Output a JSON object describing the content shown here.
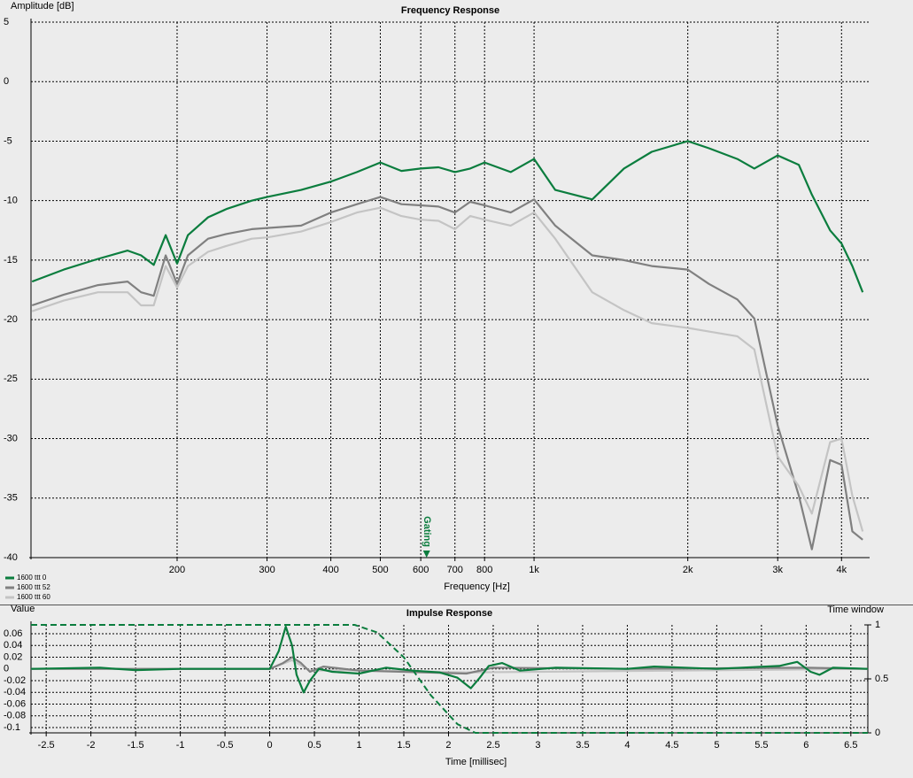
{
  "chart_data": [
    {
      "type": "line",
      "title": "Frequency Response",
      "y_label": "Amplitude [dB]",
      "x_label": "Frequency [Hz]",
      "x_scale": "log",
      "grid": true,
      "legend": "bottom-left",
      "xlim": [
        103.5,
        4540
      ],
      "ylim": [
        -40,
        5
      ],
      "xticks": [
        200,
        300,
        400,
        500,
        600,
        700,
        800,
        {
          "value": 1000,
          "label": "1k"
        },
        {
          "value": 2000,
          "label": "2k"
        },
        {
          "value": 3000,
          "label": "3k"
        },
        {
          "value": 4000,
          "label": "4k"
        }
      ],
      "yticks": [
        5,
        0,
        -5,
        -10,
        -15,
        -20,
        -25,
        -30,
        -35,
        -40
      ],
      "annotation": {
        "text": "Gating",
        "x": 616
      },
      "x": [
        104,
        120,
        140,
        160,
        170,
        180,
        190,
        200,
        210,
        230,
        250,
        280,
        300,
        350,
        400,
        450,
        500,
        550,
        600,
        650,
        700,
        750,
        800,
        900,
        1000,
        1100,
        1300,
        1500,
        1700,
        2000,
        2200,
        2500,
        2700,
        3000,
        3300,
        3500,
        3800,
        4000,
        4200,
        4400
      ],
      "series": [
        {
          "name": "1600 ttt 0",
          "color": "#0b7d3e",
          "values": [
            -16.8,
            -15.8,
            -14.9,
            -14.2,
            -14.6,
            -15.4,
            -12.9,
            -15.3,
            -12.9,
            -11.4,
            -10.7,
            -10.0,
            -9.7,
            -9.1,
            -8.4,
            -7.6,
            -6.8,
            -7.5,
            -7.3,
            -7.2,
            -7.6,
            -7.3,
            -6.8,
            -7.6,
            -6.5,
            -9.1,
            -9.9,
            -7.3,
            -5.9,
            -5.0,
            -5.6,
            -6.5,
            -7.3,
            -6.2,
            -7.0,
            -9.5,
            -12.5,
            -13.6,
            -15.5,
            -17.7
          ]
        },
        {
          "name": "1600 ttt 52",
          "color": "#808080",
          "values": [
            -18.8,
            -17.9,
            -17.1,
            -16.8,
            -17.7,
            -18.0,
            -14.6,
            -17.0,
            -14.6,
            -13.2,
            -12.8,
            -12.4,
            -12.3,
            -12.1,
            -11.0,
            -10.3,
            -9.7,
            -10.3,
            -10.4,
            -10.5,
            -11.0,
            -10.1,
            -10.4,
            -11.0,
            -9.9,
            -12.1,
            -14.6,
            -15.0,
            -15.5,
            -15.8,
            -17.0,
            -18.3,
            -19.9,
            -28.9,
            -34.8,
            -39.3,
            -31.8,
            -32.2,
            -37.8,
            -38.5
          ]
        },
        {
          "name": "1600 ttt 60",
          "color": "#c4c4c4",
          "values": [
            -19.3,
            -18.4,
            -17.7,
            -17.7,
            -18.8,
            -18.8,
            -15.5,
            -17.3,
            -15.5,
            -14.3,
            -13.8,
            -13.2,
            -13.1,
            -12.6,
            -11.8,
            -11.0,
            -10.6,
            -11.3,
            -11.6,
            -11.7,
            -12.4,
            -11.3,
            -11.6,
            -12.1,
            -11.0,
            -13.2,
            -17.7,
            -19.2,
            -20.3,
            -20.7,
            -21.0,
            -21.4,
            -22.5,
            -31.5,
            -34.0,
            -36.3,
            -30.3,
            -30.0,
            -34.8,
            -37.8
          ]
        }
      ]
    },
    {
      "type": "line",
      "title": "Impulse Response",
      "y_label": "Value",
      "y2_label": "Time window",
      "x_label": "Time [millisec]",
      "x_scale": "linear",
      "grid": true,
      "xlim": [
        -2.67,
        6.69
      ],
      "ylim": [
        -0.109,
        0.075
      ],
      "y2lim": [
        0,
        1
      ],
      "xticks": [
        -2.5,
        -2,
        -1.5,
        -1,
        -0.5,
        0,
        0.5,
        1,
        1.5,
        2,
        2.5,
        3,
        3.5,
        4,
        4.5,
        5,
        5.5,
        6,
        6.5
      ],
      "yticks": [
        0.06,
        0.04,
        0.02,
        0,
        -0.02,
        -0.04,
        -0.06,
        -0.08,
        -0.1
      ],
      "y2ticks": [
        1,
        0.5,
        0
      ],
      "series": [
        {
          "color": "#c4c4c4",
          "x": [
            -2.67,
            0,
            0.25,
            0.45,
            1,
            2.2,
            6.69
          ],
          "values": [
            0,
            0,
            0.015,
            -0.003,
            -0.002,
            -0.006,
            0
          ]
        },
        {
          "color": "#808080",
          "x": [
            -2.67,
            0,
            0.15,
            0.25,
            0.35,
            0.45,
            0.6,
            1,
            2.2,
            2.5,
            4,
            6,
            6.69
          ],
          "values": [
            0,
            0,
            0.01,
            0.02,
            0.01,
            -0.005,
            0.004,
            -0.003,
            -0.008,
            0.002,
            0,
            0.002,
            0
          ]
        },
        {
          "color": "#0b7d3e",
          "x": [
            -2.67,
            -1.9,
            -1.5,
            -1,
            0,
            0.1,
            0.18,
            0.25,
            0.3,
            0.38,
            0.45,
            0.55,
            0.7,
            1,
            1.3,
            1.6,
            1.9,
            2.1,
            2.25,
            2.35,
            2.45,
            2.6,
            2.8,
            3.2,
            4,
            4.3,
            5,
            5.7,
            5.9,
            6.05,
            6.15,
            6.3,
            6.69
          ],
          "values": [
            0,
            0.002,
            -0.002,
            0,
            0,
            0.03,
            0.072,
            0.04,
            -0.01,
            -0.04,
            -0.02,
            0,
            -0.005,
            -0.008,
            0.002,
            -0.003,
            -0.006,
            -0.015,
            -0.033,
            -0.015,
            0.005,
            0.01,
            -0.003,
            0.002,
            0,
            0.004,
            0,
            0.005,
            0.012,
            -0.005,
            -0.01,
            0.002,
            0
          ]
        },
        {
          "color": "#0b7d3e",
          "axis": "y2",
          "style": "dashed",
          "x": [
            -2.67,
            0.95,
            1.2,
            1.5,
            1.8,
            2.1,
            2.3,
            6.69
          ],
          "values": [
            1,
            1,
            0.93,
            0.7,
            0.35,
            0.08,
            0,
            0
          ]
        }
      ]
    }
  ]
}
